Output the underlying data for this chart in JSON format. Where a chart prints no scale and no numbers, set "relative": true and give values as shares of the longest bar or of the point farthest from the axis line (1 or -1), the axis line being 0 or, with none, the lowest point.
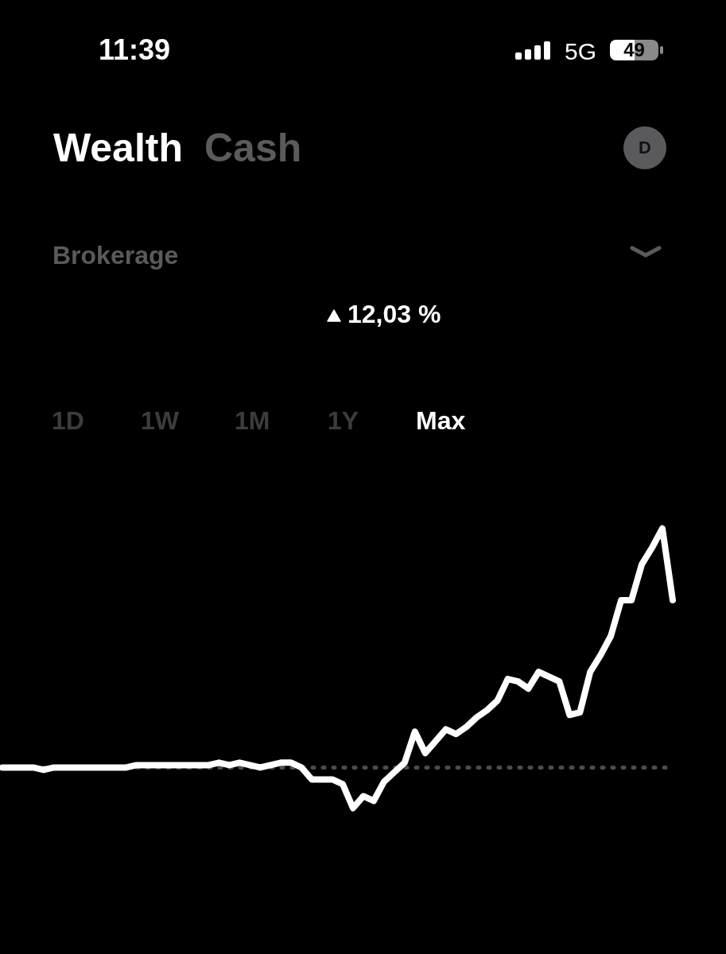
{
  "chart_data": {
    "type": "line",
    "relative": true,
    "marker": "none",
    "categories": [
      null,
      null,
      null,
      null,
      null,
      null,
      null,
      null,
      null,
      null,
      null,
      null,
      null,
      null,
      null,
      null,
      null,
      null,
      null,
      null,
      null,
      null,
      null,
      null,
      null,
      null,
      null,
      null,
      null,
      null,
      null,
      null,
      null,
      null,
      null,
      null,
      null,
      null,
      null,
      null,
      null,
      null,
      null,
      null,
      null,
      null,
      null,
      null,
      null,
      null,
      null,
      null,
      null,
      null,
      null,
      null,
      null,
      null,
      null,
      null,
      null,
      null,
      null,
      null,
      null,
      null
    ],
    "series": [
      {
        "color": "#ffffff",
        "values": [
          0,
          0,
          0,
          0,
          -0.01,
          0,
          0,
          0,
          0,
          0,
          0,
          0,
          0,
          0.01,
          0.01,
          0.01,
          0.01,
          0.01,
          0.01,
          0.01,
          0.01,
          0.02,
          0.01,
          0.02,
          0.01,
          0,
          0.01,
          0.02,
          0.02,
          0,
          -0.05,
          -0.05,
          -0.05,
          -0.07,
          -0.17,
          -0.12,
          -0.14,
          -0.06,
          -0.02,
          0.02,
          0.15,
          0.06,
          0.11,
          0.16,
          0.14,
          0.17,
          0.21,
          0.24,
          0.28,
          0.37,
          0.36,
          0.33,
          0.4,
          0.38,
          0.36,
          0.22,
          0.23,
          0.4,
          0.47,
          0.55,
          0.7,
          0.7,
          0.85,
          0.92,
          1,
          0.7
        ]
      }
    ],
    "ref_lines": [
      {
        "axis": "y",
        "value": 0,
        "color": "#4d4d4d",
        "line_style": "dotted"
      }
    ],
    "annotations": [
      "11:39",
      "5G",
      "49",
      "Wealth",
      "Cash",
      "D",
      "Brokerage",
      "12,03 %",
      "1D",
      "1W",
      "1M",
      "1Y",
      "Max"
    ]
  }
}
